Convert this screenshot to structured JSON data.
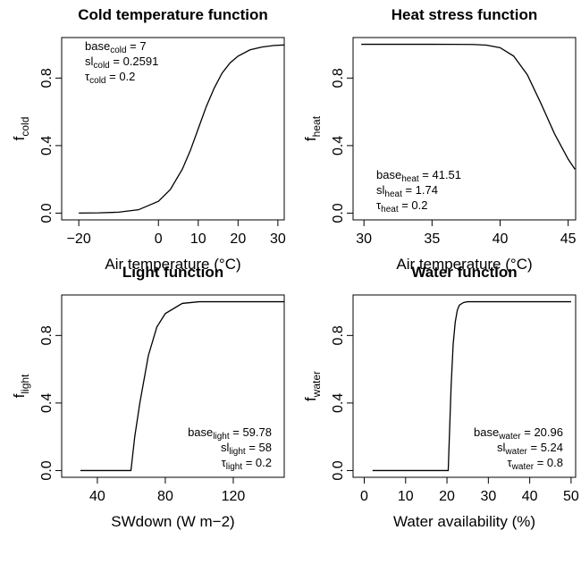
{
  "chart_data": [
    {
      "type": "line",
      "title": "Cold temperature function",
      "xlabel": "Air temperature (°C)",
      "ylabel": "f",
      "ylabel_sub": "cold",
      "x": [
        -20,
        -15,
        -10,
        -5,
        0,
        3,
        6,
        8,
        10,
        12,
        14,
        16,
        18,
        20,
        23,
        26,
        29,
        31.6
      ],
      "values": [
        0.0004,
        0.0015,
        0.0056,
        0.02,
        0.07,
        0.14,
        0.26,
        0.37,
        0.5,
        0.63,
        0.74,
        0.83,
        0.89,
        0.93,
        0.967,
        0.984,
        0.993,
        0.996
      ],
      "color": "#000000",
      "xlim": [
        -24.3,
        31.6
      ],
      "ylim": [
        -0.04,
        1.04
      ],
      "xticks": [
        {
          "value": -20,
          "label": "−20"
        },
        0,
        10,
        20,
        30
      ],
      "yticks": [
        {
          "value": 0,
          "label": "0.0"
        },
        0.4,
        0.8
      ],
      "annotation_corner": "top-left",
      "annotations": [
        {
          "text": "base",
          "sub": "cold",
          "rest": " = 7"
        },
        {
          "text": "sl",
          "sub": "cold",
          "rest": " = 0.2591"
        },
        {
          "text": "τ",
          "sub": "cold",
          "rest": " = 0.2"
        }
      ]
    },
    {
      "type": "line",
      "title": "Heat stress function",
      "xlabel": "Air temperature (°C)",
      "ylabel": "f",
      "ylabel_sub": "heat",
      "x": [
        29.8,
        35,
        38,
        39,
        40,
        41,
        42,
        43,
        44,
        45,
        45.5
      ],
      "values": [
        1,
        1,
        0.999,
        0.995,
        0.98,
        0.93,
        0.82,
        0.65,
        0.47,
        0.32,
        0.26
      ],
      "color": "#000000",
      "xlim": [
        29.2,
        45.55
      ],
      "ylim": [
        -0.04,
        1.04
      ],
      "xticks": [
        30,
        35,
        40,
        45
      ],
      "yticks": [
        {
          "value": 0,
          "label": "0.0"
        },
        0.4,
        0.8
      ],
      "annotation_corner": "bottom-left",
      "annotations": [
        {
          "text": "base",
          "sub": "heat",
          "rest": " = 41.51"
        },
        {
          "text": "sl",
          "sub": "heat",
          "rest": " = 1.74"
        },
        {
          "text": "τ",
          "sub": "heat",
          "rest": " = 0.2"
        }
      ]
    },
    {
      "type": "line",
      "title": "Light function",
      "xlabel": "SWdown (W m−2)",
      "ylabel": "f",
      "ylabel_sub": "light",
      "x": [
        30,
        59.78,
        62,
        65,
        70,
        75,
        80,
        90,
        100,
        150
      ],
      "values": [
        0,
        0,
        0.2,
        0.4,
        0.68,
        0.85,
        0.93,
        0.99,
        1,
        1
      ],
      "color": "#000000",
      "xlim": [
        19,
        150
      ],
      "ylim": [
        -0.04,
        1.04
      ],
      "xticks": [
        40,
        80,
        120
      ],
      "yticks": [
        {
          "value": 0,
          "label": "0.0"
        },
        0.4,
        0.8
      ],
      "annotation_corner": "bottom-right",
      "annotations": [
        {
          "text": "base",
          "sub": "light",
          "rest": " = 59.78"
        },
        {
          "text": "sl",
          "sub": "light",
          "rest": " = 58"
        },
        {
          "text": "τ",
          "sub": "light",
          "rest": " = 0.2"
        }
      ]
    },
    {
      "type": "line",
      "title": "Water function",
      "xlabel": "Water availability (%)",
      "ylabel": "f",
      "ylabel_sub": "water",
      "x": [
        2,
        20.3,
        21,
        21.5,
        22,
        22.5,
        23,
        24,
        25,
        30,
        40,
        50
      ],
      "values": [
        0,
        0,
        0.5,
        0.75,
        0.88,
        0.95,
        0.98,
        0.995,
        1,
        1,
        1,
        1
      ],
      "color": "#000000",
      "xlim": [
        -2.7,
        51.1
      ],
      "ylim": [
        -0.04,
        1.04
      ],
      "xticks": [
        0,
        10,
        20,
        30,
        40,
        50
      ],
      "yticks": [
        {
          "value": 0,
          "label": "0.0"
        },
        0.4,
        0.8
      ],
      "annotation_corner": "bottom-right",
      "annotations": [
        {
          "text": "base",
          "sub": "water",
          "rest": " = 20.96"
        },
        {
          "text": "sl",
          "sub": "water",
          "rest": " = 5.24"
        },
        {
          "text": "τ",
          "sub": "water",
          "rest": " = 0.8"
        }
      ]
    }
  ]
}
